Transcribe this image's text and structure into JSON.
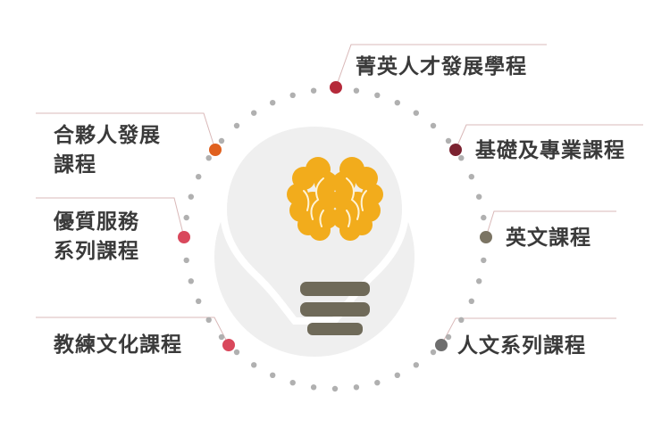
{
  "items": [
    {
      "id": "elite-talent",
      "lines": [
        "菁英人才發展學程"
      ],
      "dot_color": "#b52a3a"
    },
    {
      "id": "partner-development",
      "lines": [
        "合夥人發展",
        "課程"
      ],
      "dot_color": "#e0601e"
    },
    {
      "id": "quality-service",
      "lines": [
        "優質服務",
        "系列課程"
      ],
      "dot_color": "#d9485c"
    },
    {
      "id": "coaching-culture",
      "lines": [
        "教練文化課程"
      ],
      "dot_color": "#d9485c"
    },
    {
      "id": "foundation-professional",
      "lines": [
        "基礎及專業課程"
      ],
      "dot_color": "#7b2230"
    },
    {
      "id": "english",
      "lines": [
        "英文課程"
      ],
      "dot_color": "#7b7463"
    },
    {
      "id": "humanities",
      "lines": [
        "人文系列課程"
      ],
      "dot_color": "#6e6e6e"
    }
  ],
  "colors": {
    "ring_dots": "#b0b0b0",
    "connector": "#d9b8b8",
    "bulb_bg": "#efefef",
    "bulb_outline": "#ffffff",
    "brain": "#f2ac1c",
    "brain_lines": "#fff3d6",
    "bulb_base": "#6f6a59"
  },
  "icons": {
    "center": "lightbulb-brain-icon"
  }
}
